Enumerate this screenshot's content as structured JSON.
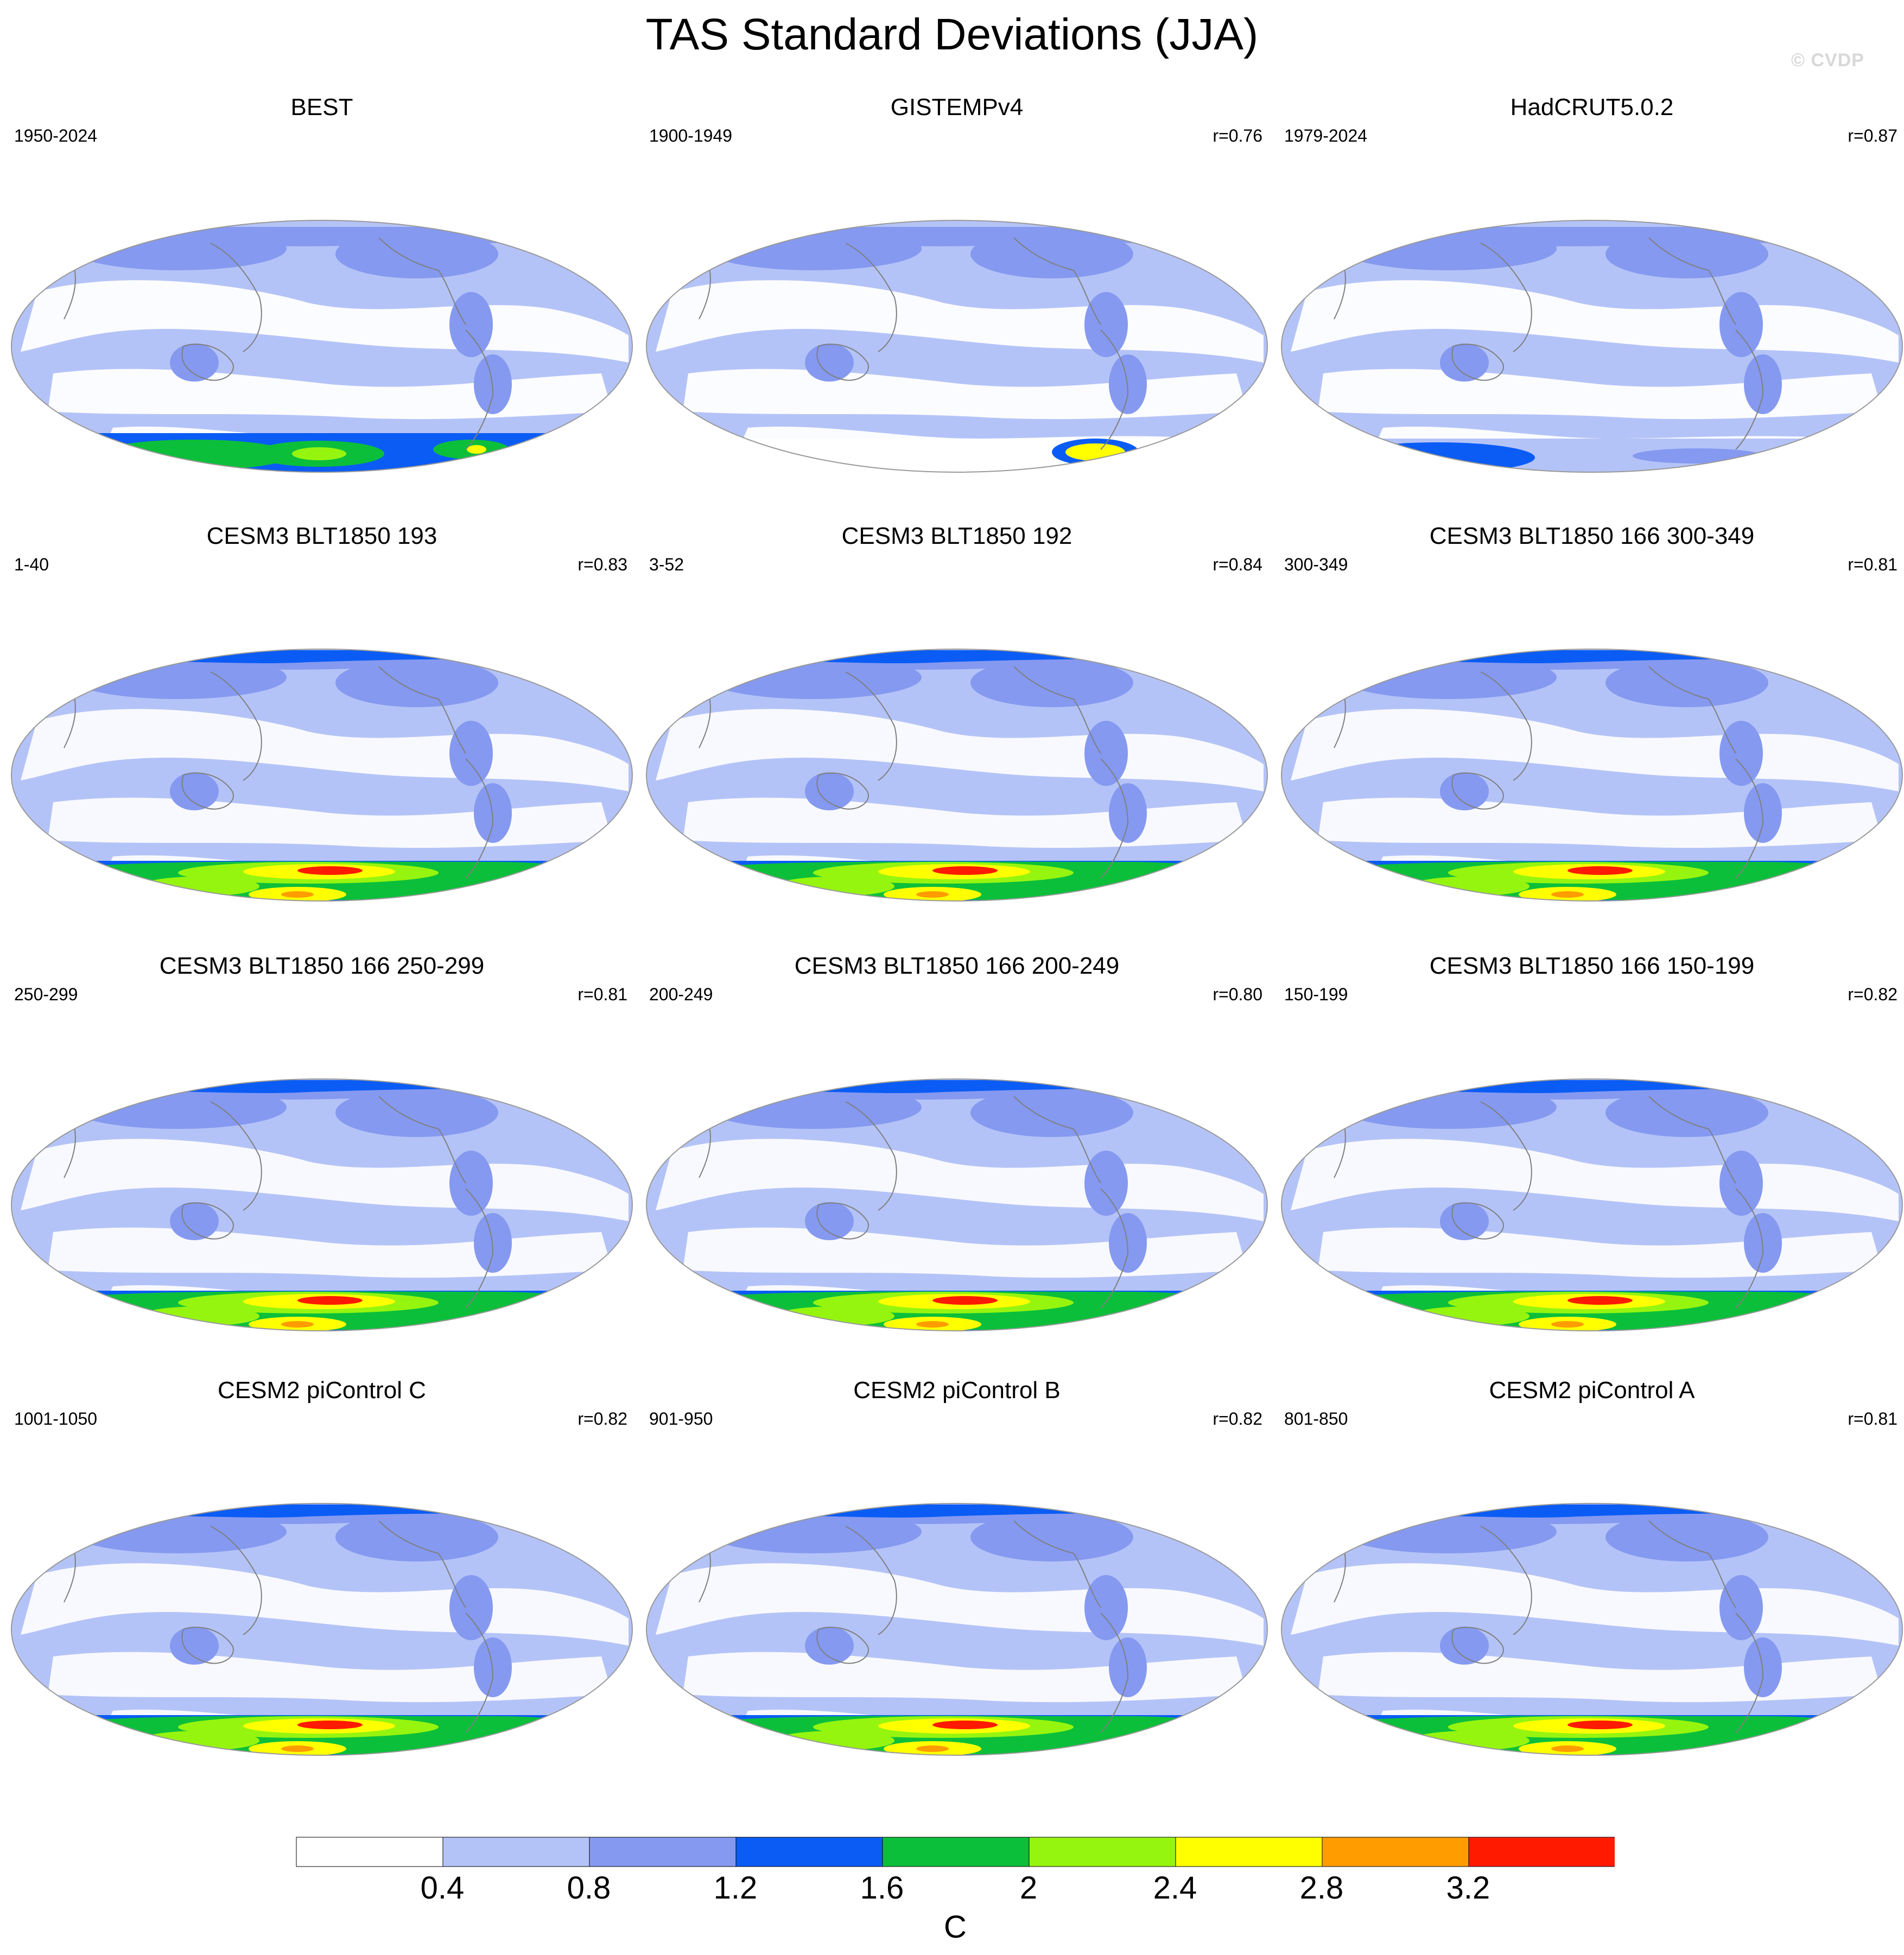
{
  "figure": {
    "title": "TAS Standard Deviations (JJA)",
    "watermark": "© CVDP"
  },
  "panels": [
    {
      "title": "BEST",
      "period": "1950-2024",
      "corr": "",
      "pattern": "obs",
      "antarctic": "observed"
    },
    {
      "title": "GISTEMPv4",
      "period": "1900-1949",
      "corr": "r=0.76",
      "pattern": "obs",
      "antarctic": "sparse"
    },
    {
      "title": "HadCRUT5.0.2",
      "period": "1979-2024",
      "corr": "r=0.87",
      "pattern": "obs",
      "antarctic": "weak"
    },
    {
      "title": "CESM3 BLT1850 193",
      "period": "1-40",
      "corr": "r=0.83",
      "pattern": "model",
      "antarctic": "strong"
    },
    {
      "title": "CESM3 BLT1850 192",
      "period": "3-52",
      "corr": "r=0.84",
      "pattern": "model",
      "antarctic": "strong"
    },
    {
      "title": "CESM3 BLT1850 166 300-349",
      "period": "300-349",
      "corr": "r=0.81",
      "pattern": "model",
      "antarctic": "strong"
    },
    {
      "title": "CESM3 BLT1850 166 250-299",
      "period": "250-299",
      "corr": "r=0.81",
      "pattern": "model",
      "antarctic": "strong"
    },
    {
      "title": "CESM3 BLT1850 166 200-249",
      "period": "200-249",
      "corr": "r=0.80",
      "pattern": "model",
      "antarctic": "strong"
    },
    {
      "title": "CESM3 BLT1850 166 150-199",
      "period": "150-199",
      "corr": "r=0.82",
      "pattern": "model",
      "antarctic": "strong"
    },
    {
      "title": "CESM2 piControl C",
      "period": "1001-1050",
      "corr": "r=0.82",
      "pattern": "model",
      "antarctic": "strong"
    },
    {
      "title": "CESM2 piControl B",
      "period": "901-950",
      "corr": "r=0.82",
      "pattern": "model",
      "antarctic": "strong"
    },
    {
      "title": "CESM2 piControl A",
      "period": "801-850",
      "corr": "r=0.81",
      "pattern": "model",
      "antarctic": "strong"
    }
  ],
  "colorbar": {
    "unit": "C",
    "tick_labels": [
      "0.4",
      "0.8",
      "1.2",
      "1.6",
      "2",
      "2.4",
      "2.8",
      "3.2"
    ],
    "colors": [
      "#ffffff",
      "#b4c3f7",
      "#8599f0",
      "#0a5cf5",
      "#0bbf3a",
      "#96f50f",
      "#ffff00",
      "#ff9c00",
      "#ff1a00"
    ]
  },
  "legend_colors": {
    "land_outline": "#7f7f7f",
    "map_border": "#999999"
  }
}
